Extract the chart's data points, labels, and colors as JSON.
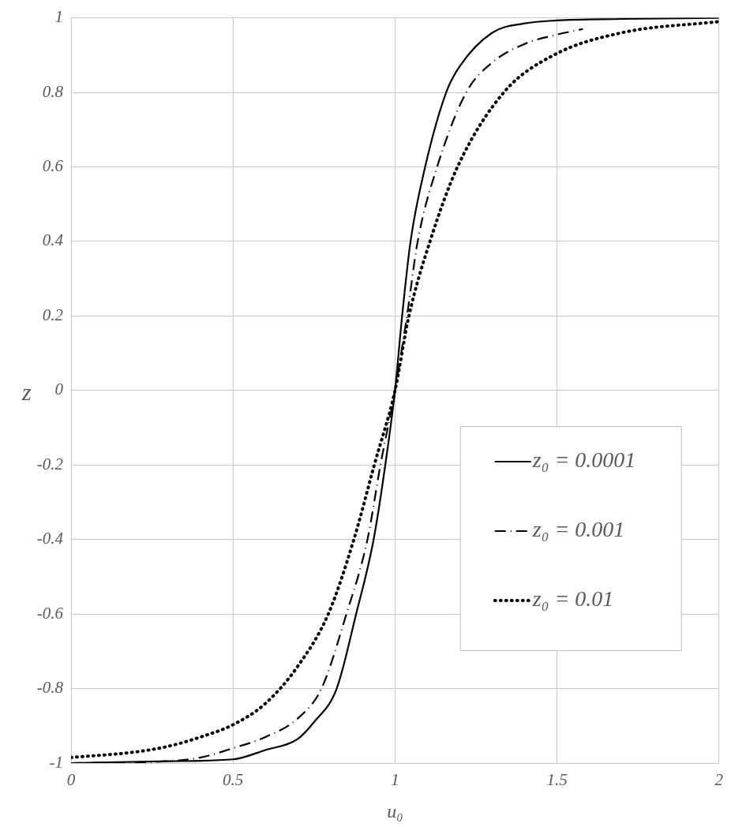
{
  "chart_data": {
    "type": "line",
    "xlabel": "u₀",
    "ylabel": "z",
    "xlim": [
      0,
      2
    ],
    "xticks": [
      0,
      0.5,
      1,
      1.5,
      2
    ],
    "ylim": [
      -1,
      1
    ],
    "yticks": [
      -1,
      -0.8,
      -0.6,
      -0.4,
      -0.2,
      0,
      0.2,
      0.4,
      0.6,
      0.8,
      1
    ],
    "grid": true,
    "legend": "bottom right",
    "marker": "none",
    "series": [
      {
        "name": "z₀ = 0.0001",
        "color": "#000000",
        "line_style": "solid",
        "x": [
          0,
          0.3,
          0.5,
          0.6,
          0.7,
          0.75,
          0.82,
          0.88,
          0.934,
          0.97,
          1,
          1.022,
          1.048,
          1.093,
          1.158,
          1.2,
          1.3,
          1.4,
          1.5,
          1.7,
          2
        ],
        "values": [
          -1,
          -0.995,
          -0.99,
          -0.965,
          -0.935,
          -0.89,
          -0.8,
          -0.6,
          -0.4,
          -0.2,
          0,
          0.2,
          0.4,
          0.6,
          0.8,
          0.87,
          0.96,
          0.985,
          0.993,
          0.997,
          1
        ]
      },
      {
        "name": "z₀ = 0.001",
        "color": "#000000",
        "line_style": "dashdot",
        "x": [
          0,
          0.3,
          0.4,
          0.5,
          0.6,
          0.7,
          0.773,
          0.85,
          0.915,
          0.955,
          1,
          1.037,
          1.07,
          1.13,
          1.22,
          1.3,
          1.4,
          1.5,
          1.58
        ],
        "values": [
          -1,
          -0.995,
          -0.985,
          -0.96,
          -0.93,
          -0.88,
          -0.8,
          -0.6,
          -0.4,
          -0.2,
          0,
          0.2,
          0.4,
          0.6,
          0.8,
          0.88,
          0.93,
          0.955,
          0.97
        ]
      },
      {
        "name": "z₀ = 0.01",
        "color": "#000000",
        "line_style": "dotted",
        "x": [
          0,
          0.2,
          0.3,
          0.4,
          0.5,
          0.6,
          0.7,
          0.794,
          0.873,
          0.936,
          1,
          1.043,
          1.108,
          1.193,
          1.336,
          1.49,
          1.7,
          2
        ],
        "values": [
          -0.985,
          -0.97,
          -0.955,
          -0.93,
          -0.897,
          -0.84,
          -0.74,
          -0.6,
          -0.4,
          -0.2,
          0,
          0.2,
          0.4,
          0.6,
          0.8,
          0.9,
          0.96,
          0.99
        ]
      }
    ]
  }
}
